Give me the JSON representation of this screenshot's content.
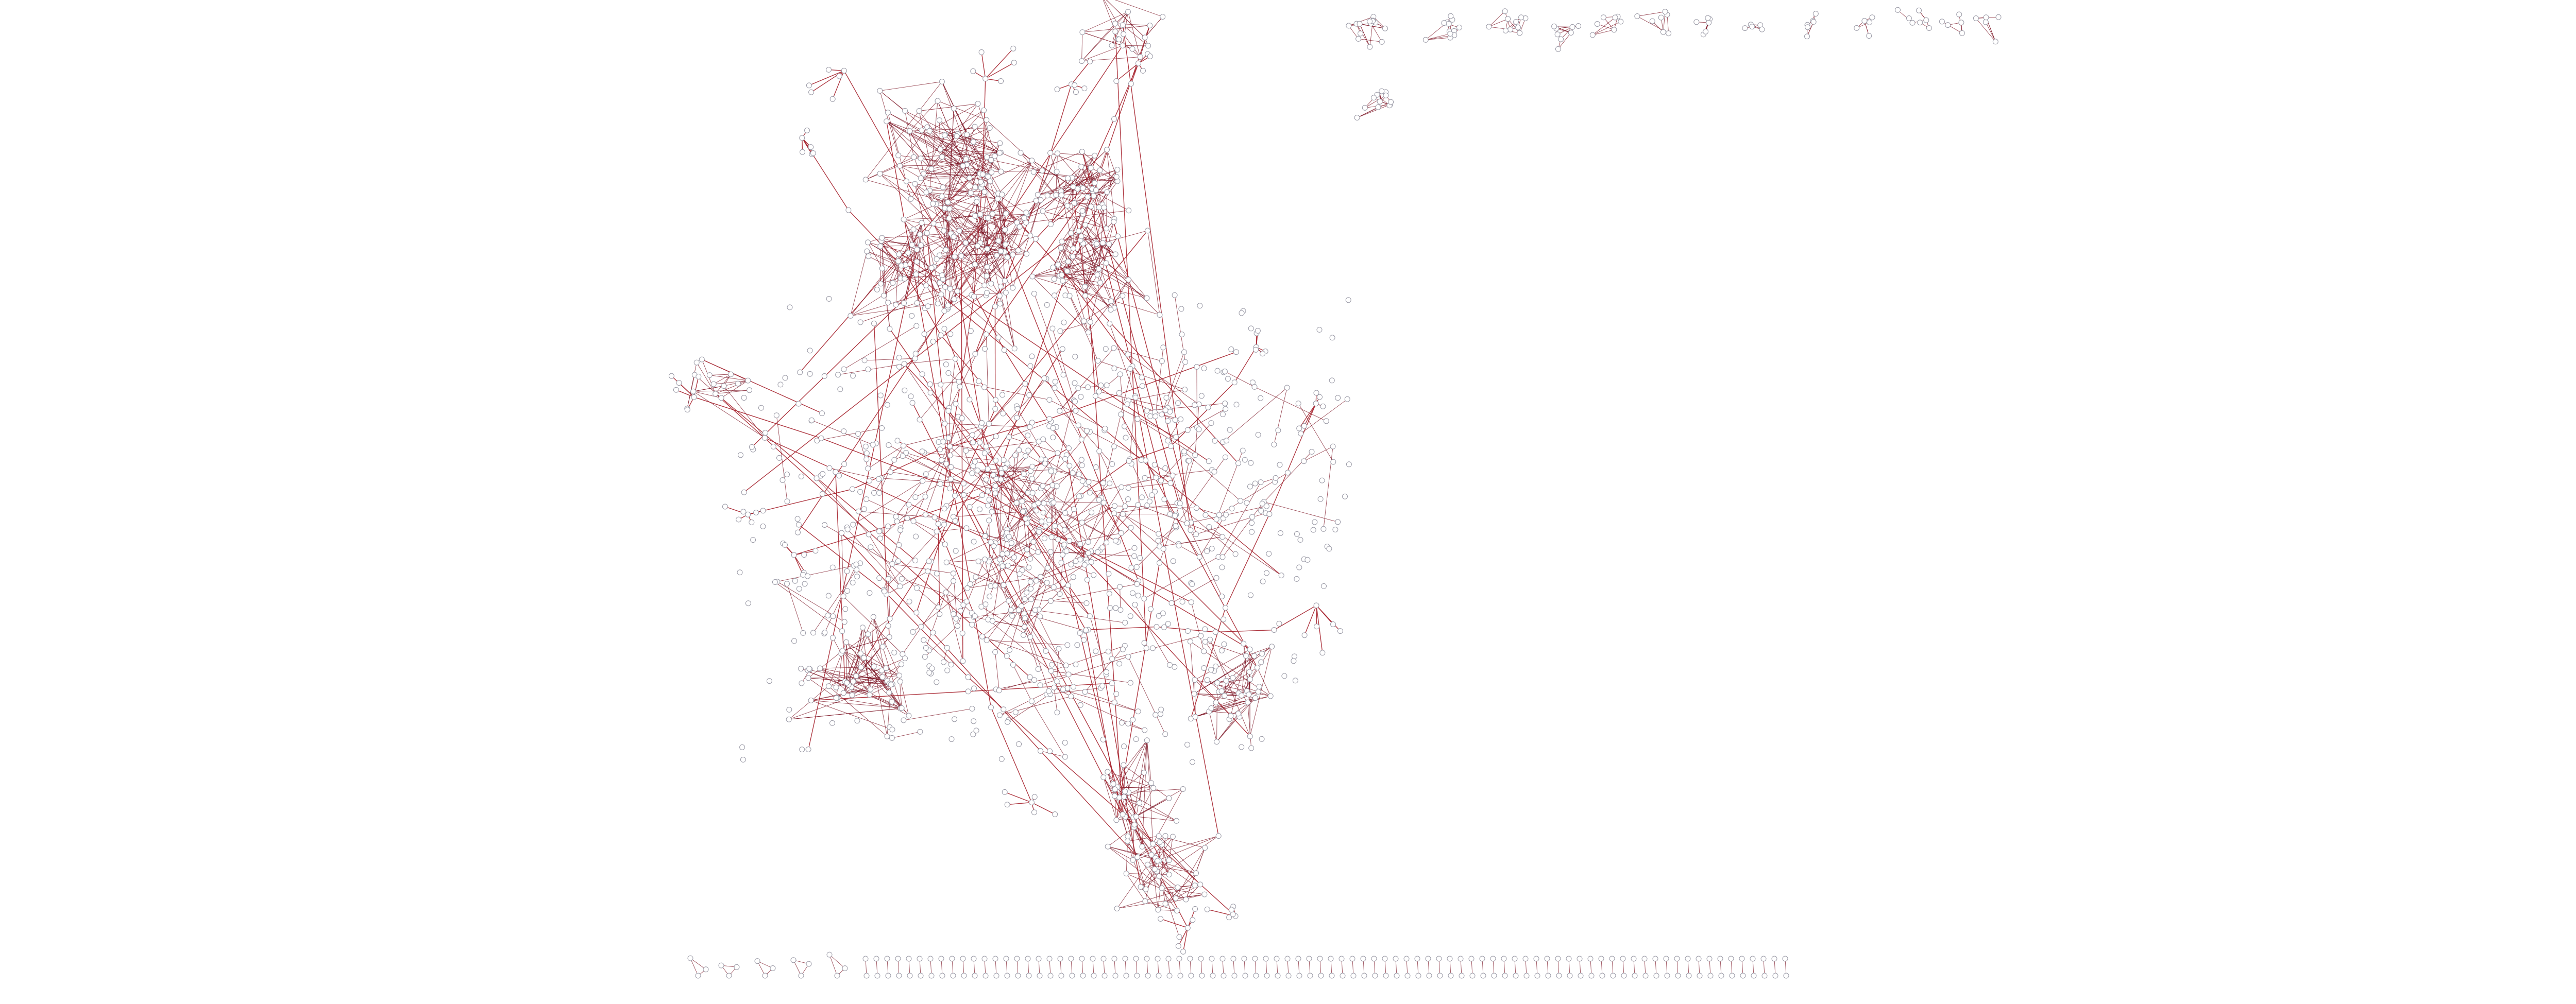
{
  "chart_data": {
    "type": "network",
    "background": "#ffffff",
    "edge_color": "#a5202b",
    "edge_color_dense": "#7a1020",
    "node_fill": "#ffffff",
    "node_stroke": "#9a9aa6",
    "components": [
      {
        "name": "main-component",
        "kind": "large-cluster"
      },
      {
        "name": "top-right-small-components",
        "kind": "small-clusters"
      },
      {
        "name": "bottom-row-components",
        "kind": "pairs-and-isolates"
      }
    ]
  }
}
